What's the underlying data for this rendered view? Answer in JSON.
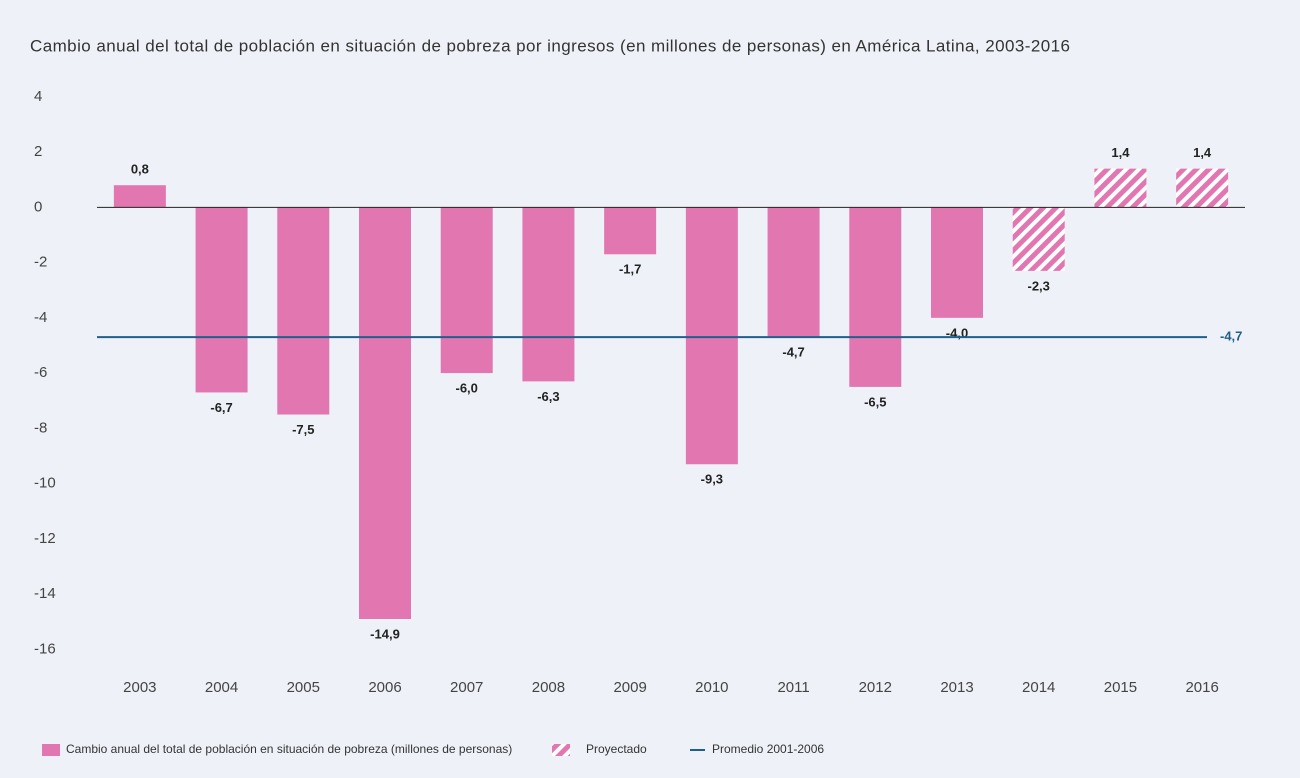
{
  "chart_data": {
    "type": "bar",
    "title": "Cambio anual del total de población en situación de pobreza por ingresos (en millones de personas) en América Latina, 2003-2016",
    "categories": [
      "2003",
      "2004",
      "2005",
      "2006",
      "2007",
      "2008",
      "2009",
      "2010",
      "2011",
      "2012",
      "2013",
      "2014",
      "2015",
      "2016"
    ],
    "series": [
      {
        "name": "Cambio anual del total de población en situación de pobreza (millones de personas)",
        "color": "#e276b0",
        "values": [
          0.8,
          -6.7,
          -7.5,
          -14.9,
          -6.0,
          -6.3,
          -1.7,
          -9.3,
          -4.7,
          -6.5,
          -4.0,
          -2.3,
          1.4,
          1.4
        ],
        "value_labels": [
          "0,8",
          "-6,7",
          "-7,5",
          "-14,9",
          "-6,0",
          "-6,3",
          "-1,7",
          "-9,3",
          "-4,7",
          "-6,5",
          "-4,0",
          "-2,3",
          "1,4",
          "1,4"
        ]
      }
    ],
    "projected": [
      false,
      false,
      false,
      false,
      false,
      false,
      false,
      false,
      false,
      false,
      false,
      true,
      true,
      true
    ],
    "projected_name": "Proyectado",
    "reference_line": {
      "name": "Promedio 2001-2006",
      "value": -4.7,
      "label": "-4,7",
      "color": "#1f5f8b"
    },
    "ylim": [
      -17,
      4.5
    ],
    "yticks": [
      4,
      2,
      0,
      -2,
      -4,
      -6,
      -8,
      -10,
      -12,
      -14,
      -16
    ]
  }
}
